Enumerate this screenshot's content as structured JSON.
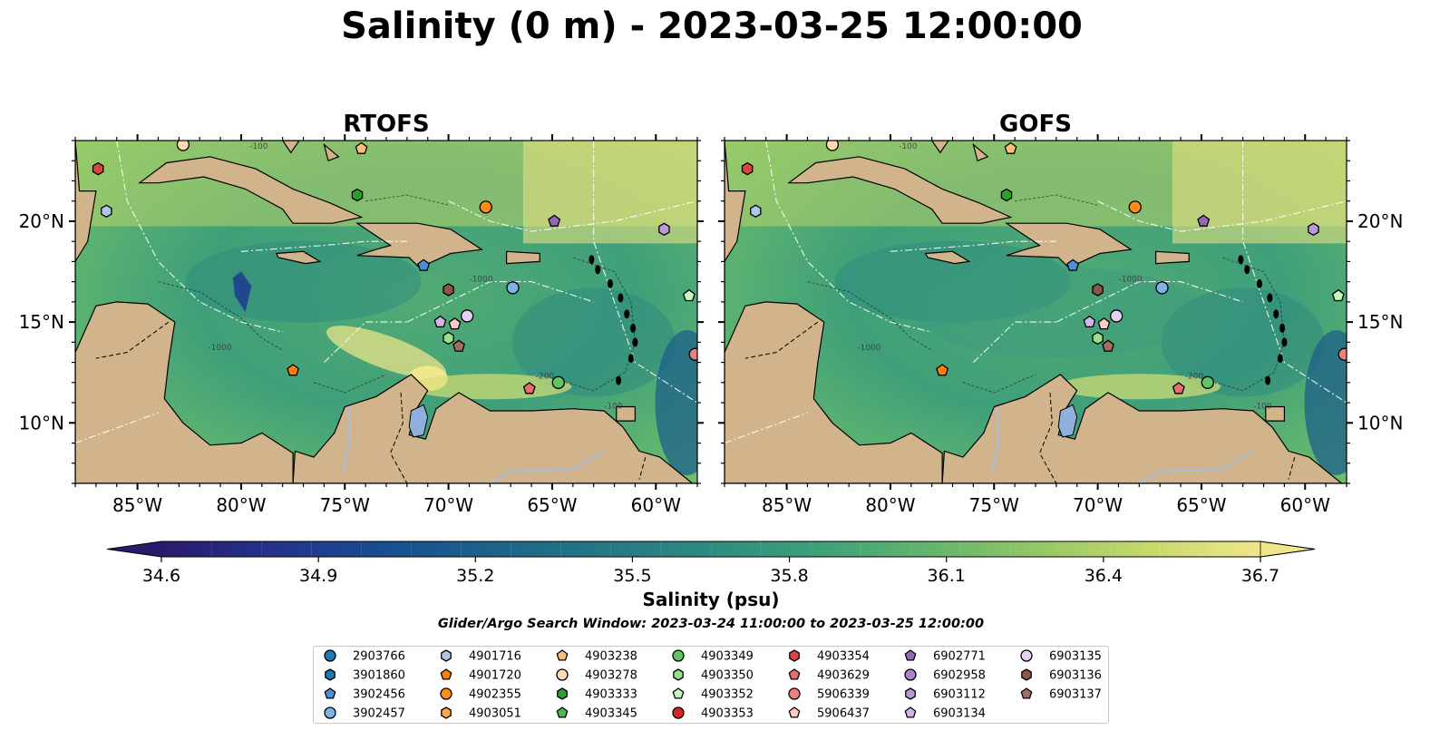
{
  "title": "Salinity (0 m) - 2023-03-25 12:00:00",
  "panels": [
    {
      "name": "RTOFS",
      "lon_range": [
        -88,
        -58
      ],
      "lat_range": [
        7,
        24
      ]
    },
    {
      "name": "GOFS",
      "lon_range": [
        -88,
        -58
      ],
      "lat_range": [
        7,
        24
      ]
    }
  ],
  "x_ticks": [
    "85°W",
    "80°W",
    "75°W",
    "70°W",
    "65°W",
    "60°W"
  ],
  "y_ticks": [
    "10°N",
    "15°N",
    "20°N"
  ],
  "contour_labels": [
    "-100",
    "-1000",
    "-1000",
    "-200",
    "-100"
  ],
  "colorbar": {
    "label": "Salinity (psu)",
    "ticks": [
      "34.6",
      "34.9",
      "35.2",
      "35.5",
      "35.8",
      "36.1",
      "36.4",
      "36.7"
    ],
    "range": [
      34.6,
      36.7
    ],
    "colors_low_to_high": [
      "#2a1a6c",
      "#25328c",
      "#174d91",
      "#1d6389",
      "#257785",
      "#2e8b80",
      "#3fa078",
      "#63b56d",
      "#96c766",
      "#c7d96b",
      "#f0e68c"
    ]
  },
  "search_window": "Glider/Argo Search Window: 2023-03-24 11:00:00 to 2023-03-25 12:00:00",
  "map_colors": {
    "land": "#d2b48c",
    "deep_pacific": "#281a6a",
    "lake": "#8fb0dc",
    "rivers": "#a8bfdc"
  },
  "chart_data": {
    "type": "map",
    "variable": "Salinity",
    "depth": "0 m",
    "units": "psu",
    "platforms": [
      {
        "id": "2903766",
        "color": "#1f77b4",
        "marker": "circle",
        "lon": null,
        "lat": null
      },
      {
        "id": "3901860",
        "color": "#1f77b4",
        "marker": "hexagon",
        "lon": null,
        "lat": null
      },
      {
        "id": "3902456",
        "color": "#4a90d9",
        "marker": "pentagon",
        "lon": -71.2,
        "lat": 17.8
      },
      {
        "id": "3902457",
        "color": "#7fb2e5",
        "marker": "circle",
        "lon": -66.9,
        "lat": 16.7
      },
      {
        "id": "4901716",
        "color": "#aec7e8",
        "marker": "hexagon",
        "lon": -86.5,
        "lat": 20.5
      },
      {
        "id": "4901720",
        "color": "#ff7f0e",
        "marker": "pentagon",
        "lon": -77.5,
        "lat": 12.6
      },
      {
        "id": "4902355",
        "color": "#ff8c1a",
        "marker": "circle",
        "lon": -68.2,
        "lat": 20.7
      },
      {
        "id": "4903051",
        "color": "#ffa64d",
        "marker": "hexagon",
        "lon": null,
        "lat": null
      },
      {
        "id": "4903238",
        "color": "#ffbb78",
        "marker": "pentagon",
        "lon": -74.2,
        "lat": 23.6
      },
      {
        "id": "4903278",
        "color": "#ffd9b3",
        "marker": "circle",
        "lon": -82.8,
        "lat": 23.8
      },
      {
        "id": "4903333",
        "color": "#2ca02c",
        "marker": "hexagon",
        "lon": -74.4,
        "lat": 21.3
      },
      {
        "id": "4903345",
        "color": "#4cbb4c",
        "marker": "pentagon",
        "lon": null,
        "lat": null
      },
      {
        "id": "4903349",
        "color": "#66c266",
        "marker": "circle",
        "lon": -64.7,
        "lat": 12.0
      },
      {
        "id": "4903350",
        "color": "#98df8a",
        "marker": "hexagon",
        "lon": -70.0,
        "lat": 14.2
      },
      {
        "id": "4903352",
        "color": "#c7f5c0",
        "marker": "pentagon",
        "lon": -58.4,
        "lat": 16.3
      },
      {
        "id": "4903353",
        "color": "#d62728",
        "marker": "circle",
        "lon": null,
        "lat": null
      },
      {
        "id": "4903354",
        "color": "#d9453f",
        "marker": "hexagon",
        "lon": -86.9,
        "lat": 22.6
      },
      {
        "id": "4903629",
        "color": "#e8706c",
        "marker": "pentagon",
        "lon": -66.1,
        "lat": 11.7
      },
      {
        "id": "5906339",
        "color": "#f08080",
        "marker": "circle",
        "lon": -58.1,
        "lat": 13.4
      },
      {
        "id": "5906437",
        "color": "#ffc9c9",
        "marker": "pentagon",
        "lon": -69.7,
        "lat": 14.9
      },
      {
        "id": "6902771",
        "color": "#9467bd",
        "marker": "pentagon",
        "lon": -64.9,
        "lat": 20.0
      },
      {
        "id": "6902958",
        "color": "#a982cc",
        "marker": "circle",
        "lon": null,
        "lat": null
      },
      {
        "id": "6903112",
        "color": "#b99ad9",
        "marker": "hexagon",
        "lon": -59.6,
        "lat": 19.6
      },
      {
        "id": "6903134",
        "color": "#d1b5ec",
        "marker": "pentagon",
        "lon": -70.4,
        "lat": 15.0
      },
      {
        "id": "6903135",
        "color": "#e3d0f5",
        "marker": "circle",
        "lon": -69.1,
        "lat": 15.3
      },
      {
        "id": "6903136",
        "color": "#8c564b",
        "marker": "hexagon",
        "lon": -70.0,
        "lat": 16.6
      },
      {
        "id": "6903137",
        "color": "#a0705f",
        "marker": "pentagon",
        "lon": -69.5,
        "lat": 13.8
      }
    ]
  }
}
